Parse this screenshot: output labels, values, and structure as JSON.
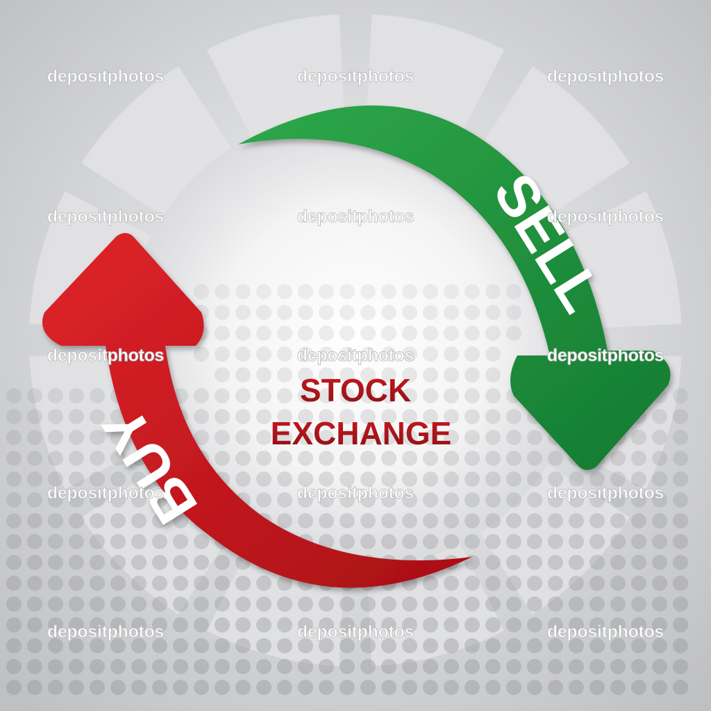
{
  "title": {
    "line1": "STOCK",
    "line2": "EXCHANGE"
  },
  "arrows": {
    "sell": {
      "label": "SELL",
      "color": "#1d8c3a"
    },
    "buy": {
      "label": "BUY",
      "color": "#c0161c"
    }
  },
  "watermark": {
    "text": "depositphotos"
  },
  "colors": {
    "background": "#c9cacc",
    "title": "#b1161b"
  }
}
